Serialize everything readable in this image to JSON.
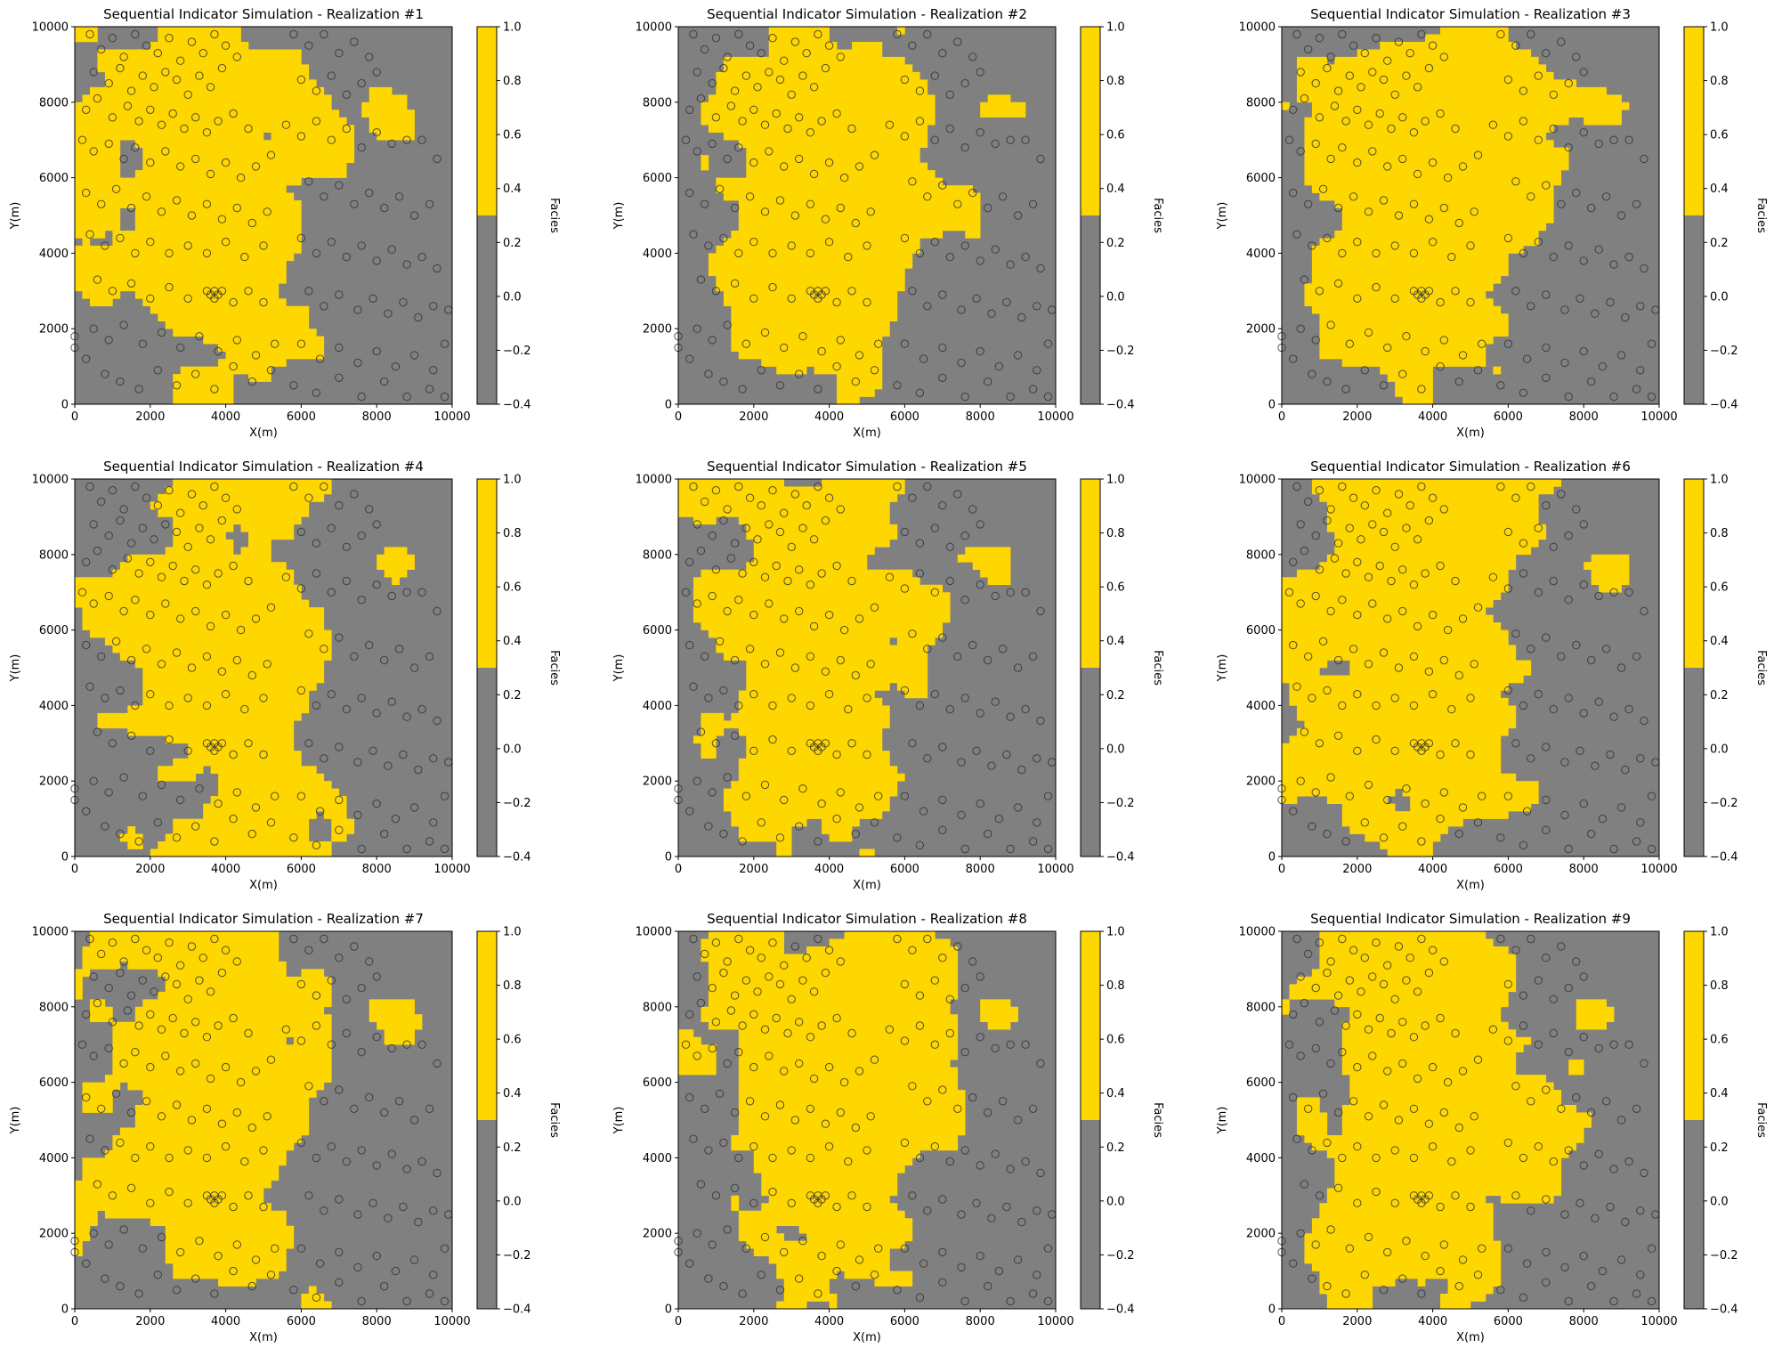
{
  "figure": {
    "background": "#ffffff"
  },
  "colors": {
    "sand": "#ffd700",
    "shale": "#808080",
    "well_edge": "#333333"
  },
  "chart_data": [
    {
      "type": "heatmap",
      "title": "Sequential Indicator Simulation - Realization #1",
      "xlabel": "X(m)",
      "ylabel": "Y(m)",
      "xlim": [
        0,
        10000
      ],
      "ylim": [
        0,
        10000
      ],
      "colorbar_label": "Facies",
      "colorbar_range": [
        -0.4,
        1.0
      ],
      "colorbar_split": 0.3
    },
    {
      "type": "heatmap",
      "title": "Sequential Indicator Simulation - Realization #2",
      "xlabel": "X(m)",
      "ylabel": "Y(m)",
      "xlim": [
        0,
        10000
      ],
      "ylim": [
        0,
        10000
      ],
      "colorbar_label": "Facies",
      "colorbar_range": [
        -0.4,
        1.0
      ],
      "colorbar_split": 0.3
    },
    {
      "type": "heatmap",
      "title": "Sequential Indicator Simulation - Realization #3",
      "xlabel": "X(m)",
      "ylabel": "Y(m)",
      "xlim": [
        0,
        10000
      ],
      "ylim": [
        0,
        10000
      ],
      "colorbar_label": "Facies",
      "colorbar_range": [
        -0.4,
        1.0
      ],
      "colorbar_split": 0.3
    },
    {
      "type": "heatmap",
      "title": "Sequential Indicator Simulation - Realization #4",
      "xlabel": "X(m)",
      "ylabel": "Y(m)",
      "xlim": [
        0,
        10000
      ],
      "ylim": [
        0,
        10000
      ],
      "colorbar_label": "Facies",
      "colorbar_range": [
        -0.4,
        1.0
      ],
      "colorbar_split": 0.3
    },
    {
      "type": "heatmap",
      "title": "Sequential Indicator Simulation - Realization #5",
      "xlabel": "X(m)",
      "ylabel": "Y(m)",
      "xlim": [
        0,
        10000
      ],
      "ylim": [
        0,
        10000
      ],
      "colorbar_label": "Facies",
      "colorbar_range": [
        -0.4,
        1.0
      ],
      "colorbar_split": 0.3
    },
    {
      "type": "heatmap",
      "title": "Sequential Indicator Simulation - Realization #6",
      "xlabel": "X(m)",
      "ylabel": "Y(m)",
      "xlim": [
        0,
        10000
      ],
      "ylim": [
        0,
        10000
      ],
      "colorbar_label": "Facies",
      "colorbar_range": [
        -0.4,
        1.0
      ],
      "colorbar_split": 0.3
    },
    {
      "type": "heatmap",
      "title": "Sequential Indicator Simulation - Realization #7",
      "xlabel": "X(m)",
      "ylabel": "Y(m)",
      "xlim": [
        0,
        10000
      ],
      "ylim": [
        0,
        10000
      ],
      "colorbar_label": "Facies",
      "colorbar_range": [
        -0.4,
        1.0
      ],
      "colorbar_split": 0.3
    },
    {
      "type": "heatmap",
      "title": "Sequential Indicator Simulation - Realization #8",
      "xlabel": "X(m)",
      "ylabel": "Y(m)",
      "xlim": [
        0,
        10000
      ],
      "ylim": [
        0,
        10000
      ],
      "colorbar_label": "Facies",
      "colorbar_range": [
        -0.4,
        1.0
      ],
      "colorbar_split": 0.3
    },
    {
      "type": "heatmap",
      "title": "Sequential Indicator Simulation - Realization #9",
      "xlabel": "X(m)",
      "ylabel": "Y(m)",
      "xlim": [
        0,
        10000
      ],
      "ylim": [
        0,
        10000
      ],
      "colorbar_label": "Facies",
      "colorbar_range": [
        -0.4,
        1.0
      ],
      "colorbar_split": 0.3
    }
  ],
  "shared": {
    "x_ticks": [
      0,
      2000,
      4000,
      6000,
      8000,
      10000
    ],
    "y_ticks": [
      0,
      2000,
      4000,
      6000,
      8000,
      10000
    ],
    "colorbar_ticks": [
      "1.0",
      "0.8",
      "0.6",
      "0.4",
      "0.2",
      "0.0",
      "−0.2",
      "−0.4"
    ],
    "colorbar_tick_values": [
      1.0,
      0.8,
      0.6,
      0.4,
      0.2,
      0.0,
      -0.2,
      -0.4
    ],
    "wells": [
      [
        400,
        9800
      ],
      [
        700,
        9400
      ],
      [
        1000,
        9700
      ],
      [
        1300,
        9200
      ],
      [
        1600,
        9800
      ],
      [
        1900,
        9500
      ],
      [
        2200,
        9300
      ],
      [
        2500,
        9700
      ],
      [
        2800,
        9100
      ],
      [
        3100,
        9600
      ],
      [
        3400,
        9300
      ],
      [
        3700,
        9800
      ],
      [
        4000,
        9500
      ],
      [
        4300,
        9200
      ],
      [
        500,
        8800
      ],
      [
        900,
        8500
      ],
      [
        1200,
        8900
      ],
      [
        1500,
        8300
      ],
      [
        1800,
        8700
      ],
      [
        2100,
        8400
      ],
      [
        2400,
        8800
      ],
      [
        2700,
        8600
      ],
      [
        3000,
        8200
      ],
      [
        3300,
        8700
      ],
      [
        3600,
        8400
      ],
      [
        3900,
        8900
      ],
      [
        300,
        7800
      ],
      [
        600,
        8100
      ],
      [
        1000,
        7600
      ],
      [
        1400,
        7900
      ],
      [
        1700,
        7500
      ],
      [
        2000,
        7800
      ],
      [
        2300,
        7400
      ],
      [
        2600,
        7700
      ],
      [
        2900,
        7300
      ],
      [
        3200,
        7600
      ],
      [
        3500,
        7200
      ],
      [
        3800,
        7500
      ],
      [
        4200,
        7700
      ],
      [
        4600,
        7300
      ],
      [
        200,
        7000
      ],
      [
        500,
        6700
      ],
      [
        900,
        6900
      ],
      [
        1300,
        6500
      ],
      [
        1600,
        6800
      ],
      [
        2000,
        6400
      ],
      [
        2400,
        6700
      ],
      [
        2800,
        6300
      ],
      [
        3200,
        6500
      ],
      [
        3600,
        6100
      ],
      [
        4000,
        6400
      ],
      [
        4400,
        6000
      ],
      [
        4800,
        6300
      ],
      [
        5200,
        6600
      ],
      [
        300,
        5600
      ],
      [
        700,
        5300
      ],
      [
        1100,
        5700
      ],
      [
        1500,
        5200
      ],
      [
        1900,
        5500
      ],
      [
        2300,
        5100
      ],
      [
        2700,
        5400
      ],
      [
        3100,
        5000
      ],
      [
        3500,
        5300
      ],
      [
        3900,
        4900
      ],
      [
        4300,
        5200
      ],
      [
        4700,
        4800
      ],
      [
        5100,
        5100
      ],
      [
        400,
        4500
      ],
      [
        800,
        4200
      ],
      [
        1200,
        4400
      ],
      [
        1600,
        4000
      ],
      [
        2000,
        4300
      ],
      [
        2500,
        4000
      ],
      [
        3000,
        4200
      ],
      [
        3500,
        4000
      ],
      [
        4000,
        4300
      ],
      [
        4500,
        3900
      ],
      [
        5000,
        4200
      ],
      [
        600,
        3300
      ],
      [
        1000,
        3000
      ],
      [
        1500,
        3200
      ],
      [
        2000,
        2800
      ],
      [
        2500,
        3100
      ],
      [
        3000,
        2800
      ],
      [
        3700,
        3000
      ],
      [
        3600,
        2900
      ],
      [
        3800,
        2900
      ],
      [
        3700,
        2800
      ],
      [
        3500,
        3000
      ],
      [
        3900,
        3000
      ],
      [
        4200,
        2700
      ],
      [
        4600,
        3000
      ],
      [
        5000,
        2700
      ],
      [
        500,
        2000
      ],
      [
        900,
        1700
      ],
      [
        1300,
        2100
      ],
      [
        1800,
        1600
      ],
      [
        2300,
        1900
      ],
      [
        2800,
        1500
      ],
      [
        3300,
        1800
      ],
      [
        3800,
        1400
      ],
      [
        4300,
        1700
      ],
      [
        4800,
        1300
      ],
      [
        5300,
        1600
      ],
      [
        0,
        1800
      ],
      [
        0,
        1500
      ],
      [
        300,
        1200
      ],
      [
        800,
        800
      ],
      [
        1200,
        600
      ],
      [
        1700,
        400
      ],
      [
        2200,
        900
      ],
      [
        2700,
        500
      ],
      [
        3200,
        800
      ],
      [
        3700,
        400
      ],
      [
        4200,
        1000
      ],
      [
        4700,
        600
      ],
      [
        5200,
        900
      ],
      [
        5800,
        9800
      ],
      [
        6200,
        9500
      ],
      [
        6600,
        9800
      ],
      [
        7000,
        9300
      ],
      [
        7400,
        9600
      ],
      [
        7800,
        9200
      ],
      [
        6000,
        8600
      ],
      [
        6400,
        8300
      ],
      [
        6800,
        8700
      ],
      [
        7200,
        8200
      ],
      [
        7600,
        8500
      ],
      [
        8000,
        8800
      ],
      [
        5600,
        7400
      ],
      [
        6000,
        7100
      ],
      [
        6400,
        7500
      ],
      [
        6800,
        7000
      ],
      [
        7200,
        7300
      ],
      [
        7600,
        6800
      ],
      [
        8000,
        7200
      ],
      [
        8400,
        6900
      ],
      [
        8800,
        7000
      ],
      [
        9200,
        7000
      ],
      [
        9600,
        6500
      ],
      [
        6200,
        5900
      ],
      [
        6600,
        5500
      ],
      [
        7000,
        5800
      ],
      [
        7400,
        5300
      ],
      [
        7800,
        5600
      ],
      [
        8200,
        5200
      ],
      [
        8600,
        5500
      ],
      [
        9000,
        5000
      ],
      [
        9400,
        5300
      ],
      [
        6000,
        4400
      ],
      [
        6400,
        4000
      ],
      [
        6800,
        4300
      ],
      [
        7200,
        3900
      ],
      [
        7600,
        4200
      ],
      [
        8000,
        3800
      ],
      [
        8400,
        4100
      ],
      [
        8800,
        3700
      ],
      [
        9200,
        3900
      ],
      [
        9600,
        3600
      ],
      [
        6200,
        3000
      ],
      [
        6600,
        2600
      ],
      [
        7000,
        2900
      ],
      [
        7500,
        2500
      ],
      [
        7900,
        2800
      ],
      [
        8300,
        2400
      ],
      [
        8700,
        2700
      ],
      [
        9100,
        2300
      ],
      [
        9500,
        2600
      ],
      [
        9900,
        2500
      ],
      [
        6000,
        1600
      ],
      [
        6500,
        1200
      ],
      [
        7000,
        1500
      ],
      [
        7500,
        1100
      ],
      [
        8000,
        1400
      ],
      [
        8500,
        1000
      ],
      [
        9000,
        1300
      ],
      [
        9500,
        900
      ],
      [
        9800,
        1600
      ],
      [
        5800,
        500
      ],
      [
        6400,
        300
      ],
      [
        7000,
        700
      ],
      [
        7600,
        200
      ],
      [
        8200,
        600
      ],
      [
        8800,
        200
      ],
      [
        9400,
        400
      ],
      [
        9800,
        200
      ]
    ]
  }
}
